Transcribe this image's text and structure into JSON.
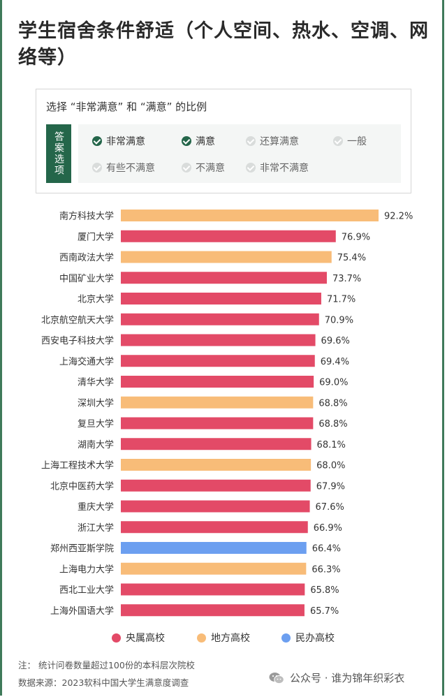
{
  "title": "学生宿舍条件舒适（个人空间、热水、空调、网络等）",
  "options": {
    "title": "选择 “非常满意” 和 “满意” 的比例",
    "tag": "答案选项",
    "items": [
      {
        "label": "非常满意",
        "checked": true
      },
      {
        "label": "满意",
        "checked": true
      },
      {
        "label": "还算满意",
        "checked": false
      },
      {
        "label": "一般",
        "checked": false
      },
      {
        "label": "有些不满意",
        "checked": false
      },
      {
        "label": "不满意",
        "checked": false
      },
      {
        "label": "非常不满意",
        "checked": false
      }
    ]
  },
  "colors": {
    "central": "#e34a67",
    "local": "#f8bc78",
    "private": "#6c9ff0",
    "brand": "#24664a"
  },
  "chart_data": {
    "type": "bar",
    "orientation": "horizontal",
    "categories": [
      "南方科技大学",
      "厦门大学",
      "西南政法大学",
      "中国矿业大学",
      "北京大学",
      "北京航空航天大学",
      "西安电子科技大学",
      "上海交通大学",
      "清华大学",
      "深圳大学",
      "复旦大学",
      "湖南大学",
      "上海工程技术大学",
      "北京中医药大学",
      "重庆大学",
      "浙江大学",
      "郑州西亚斯学院",
      "上海电力大学",
      "西北工业大学",
      "上海外国语大学"
    ],
    "values": [
      92.2,
      76.9,
      75.4,
      73.7,
      71.7,
      70.9,
      69.6,
      69.4,
      69.0,
      68.8,
      68.8,
      68.1,
      68.0,
      67.9,
      67.6,
      66.9,
      66.4,
      66.3,
      65.8,
      65.7
    ],
    "value_labels": [
      "92.2%",
      "76.9%",
      "75.4%",
      "73.7%",
      "71.7%",
      "70.9%",
      "69.6%",
      "69.4%",
      "69.0%",
      "68.8%",
      "68.8%",
      "68.1%",
      "68.0%",
      "67.9%",
      "67.6%",
      "66.9%",
      "66.4%",
      "66.3%",
      "65.8%",
      "65.7%"
    ],
    "groups": [
      "local",
      "central",
      "local",
      "central",
      "central",
      "central",
      "central",
      "central",
      "central",
      "local",
      "central",
      "central",
      "local",
      "central",
      "central",
      "central",
      "private",
      "local",
      "central",
      "central"
    ],
    "xlim": [
      0,
      100
    ],
    "grid": false,
    "legend": [
      {
        "key": "central",
        "label": "央属高校"
      },
      {
        "key": "local",
        "label": "地方高校"
      },
      {
        "key": "private",
        "label": "民办高校"
      }
    ],
    "legend_position": "bottom"
  },
  "notes": {
    "note1": "注：  统计问卷数量超过100份的本科层次院校",
    "note2": "数据来源：2023软科中国大学生满意度调查"
  },
  "brand": {
    "text": "公众号 · 谁为锦年织彩衣",
    "icon": "wechat-icon"
  }
}
